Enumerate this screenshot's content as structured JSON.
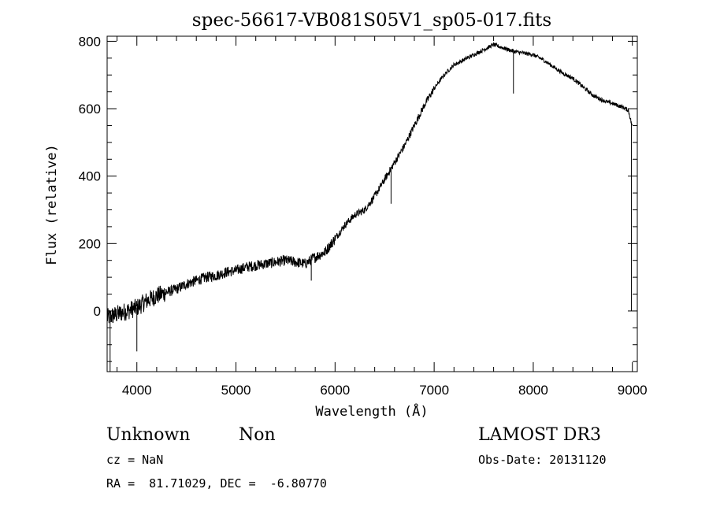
{
  "chart_data": {
    "type": "line",
    "title": "spec-56617-VB081S05V1_sp05-017.fits",
    "xlabel": "Wavelength (Å)",
    "ylabel": "Flux (relative)",
    "xlim": [
      3700,
      9050
    ],
    "ylim": [
      -180,
      815
    ],
    "xticks": [
      4000,
      5000,
      6000,
      7000,
      8000,
      9000
    ],
    "yticks": [
      0,
      200,
      400,
      600,
      800
    ],
    "series": [
      {
        "name": "spectrum",
        "x": [
          3700,
          3800,
          3900,
          4000,
          4100,
          4200,
          4300,
          4400,
          4500,
          4600,
          4700,
          4800,
          4900,
          5000,
          5100,
          5200,
          5300,
          5400,
          5500,
          5600,
          5700,
          5800,
          5900,
          6000,
          6100,
          6200,
          6300,
          6400,
          6500,
          6600,
          6700,
          6800,
          6900,
          7000,
          7100,
          7200,
          7300,
          7400,
          7500,
          7600,
          7700,
          7800,
          7900,
          8000,
          8100,
          8200,
          8300,
          8400,
          8500,
          8600,
          8700,
          8800,
          8900,
          8960,
          9000
        ],
        "y": [
          -20,
          -10,
          0,
          10,
          30,
          45,
          55,
          65,
          80,
          90,
          100,
          105,
          115,
          120,
          130,
          135,
          140,
          145,
          150,
          145,
          140,
          160,
          175,
          215,
          255,
          285,
          300,
          340,
          390,
          440,
          490,
          550,
          610,
          660,
          700,
          730,
          745,
          760,
          775,
          790,
          780,
          770,
          765,
          760,
          745,
          725,
          705,
          690,
          665,
          640,
          625,
          615,
          605,
          595,
          545
        ]
      }
    ],
    "absorption_lines": [
      {
        "x": 3730,
        "y": -180
      },
      {
        "x": 4000,
        "y": -120
      },
      {
        "x": 5760,
        "y": 90
      },
      {
        "x": 6565,
        "y": 318
      },
      {
        "x": 7800,
        "y": 645
      },
      {
        "x": 8990,
        "y": 0
      }
    ]
  },
  "labels": {
    "object_class": "Unknown",
    "object_subclass": "Non",
    "survey": "LAMOST DR3",
    "redshift": "cz = NaN",
    "obs_date": "Obs-Date: 20131120",
    "coordinates": "RA =  81.71029, DEC =  -6.80770"
  }
}
